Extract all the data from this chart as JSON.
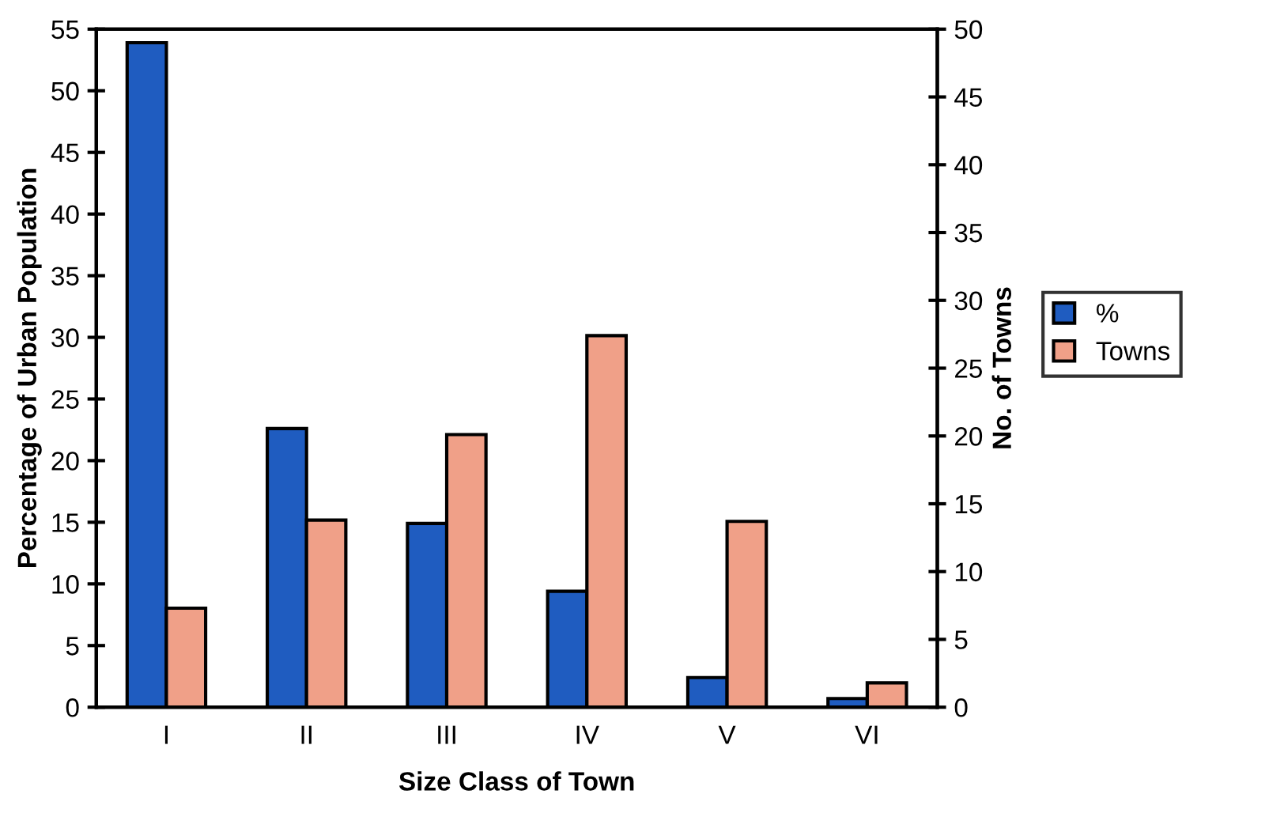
{
  "chart_data": {
    "type": "bar",
    "xlabel": "Size Class of Town",
    "ylabel": "Percentage of Urban Population",
    "y2label": "No. of Towns",
    "categories": [
      "I",
      "II",
      "III",
      "IV",
      "V",
      "VI"
    ],
    "series": [
      {
        "name": "%",
        "color": "#1f5cc0",
        "values": [
          53.9,
          22.6,
          14.9,
          9.4,
          2.4,
          0.7
        ]
      },
      {
        "name": "Towns",
        "color": "#f0a088",
        "axis": "y2",
        "values": [
          7.3,
          13.8,
          20.1,
          27.4,
          13.7,
          1.8
        ]
      }
    ],
    "ylim": [
      0,
      55
    ],
    "yticks": [
      0,
      5,
      10,
      15,
      20,
      25,
      30,
      35,
      40,
      45,
      50,
      55
    ],
    "y2lim": [
      0,
      50
    ],
    "y2ticks": [
      0,
      5,
      10,
      15,
      20,
      25,
      30,
      35,
      40,
      45,
      50
    ],
    "grid": false,
    "legend": "right"
  }
}
